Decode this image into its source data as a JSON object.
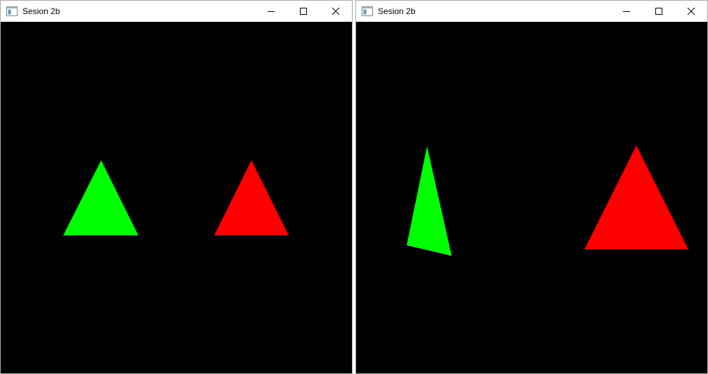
{
  "windows": [
    {
      "title": "Sesion 2b",
      "icons": {
        "app": "window-app-icon",
        "minimize": "minimize-icon",
        "maximize": "maximize-icon",
        "close": "close-icon"
      },
      "triangles": [
        {
          "name": "green-triangle",
          "color": "#00ff00"
        },
        {
          "name": "red-triangle",
          "color": "#ff0000"
        }
      ]
    },
    {
      "title": "Sesion 2b",
      "icons": {
        "app": "window-app-icon",
        "minimize": "minimize-icon",
        "maximize": "maximize-icon",
        "close": "close-icon"
      },
      "triangles": [
        {
          "name": "green-triangle",
          "color": "#00ff00"
        },
        {
          "name": "red-triangle",
          "color": "#ff0000"
        }
      ]
    }
  ]
}
